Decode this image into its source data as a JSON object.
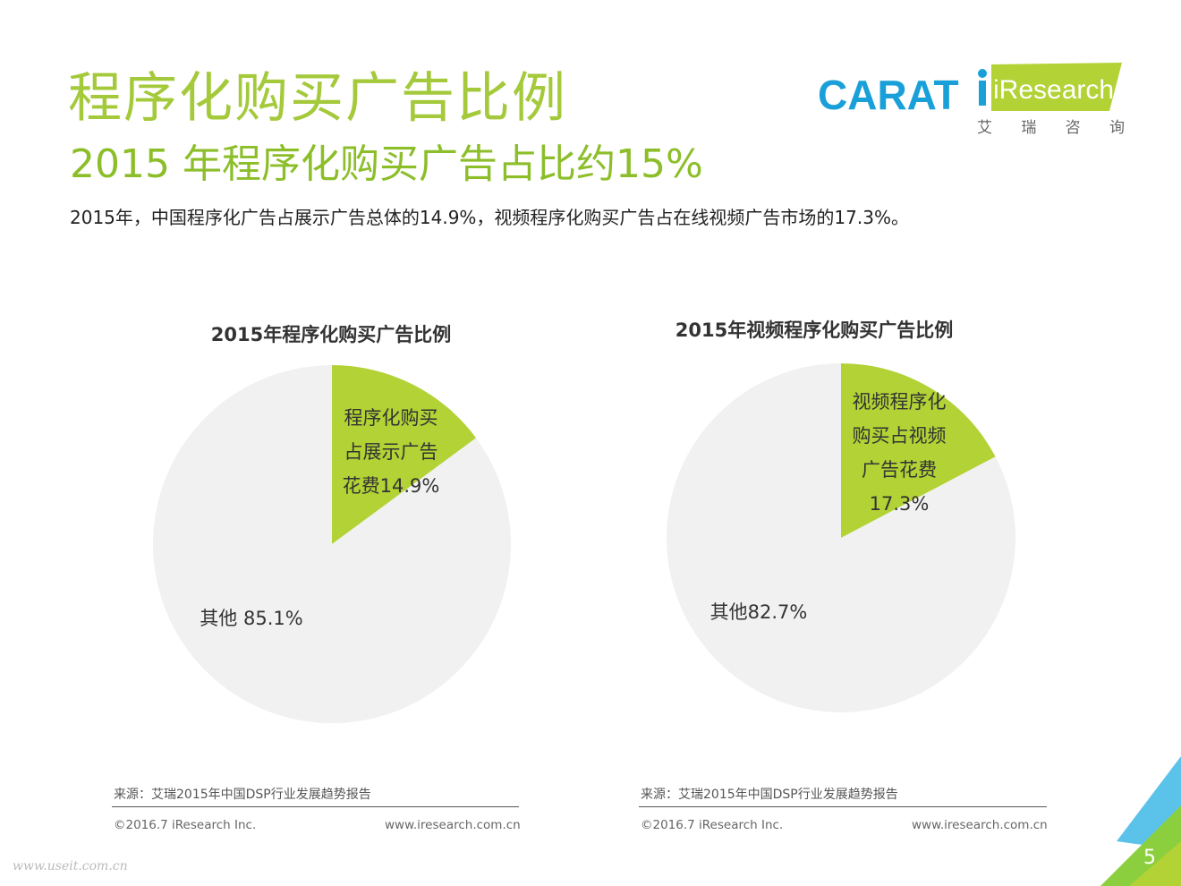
{
  "header": {
    "title": "程序化购买广告比例",
    "subtitle": "2015 年程序化购买广告占比约15%",
    "intro": "2015年，中国程序化广告占展示广告总体的14.9%，视频程序化购买广告占在线视频广告市场的17.3%。",
    "logo_carat": "CARAT",
    "logo_iresearch": "iResearch",
    "logo_iresearch_cn": [
      "艾",
      "瑞",
      "咨",
      "询"
    ]
  },
  "colors": {
    "accent": "#b2d235",
    "other": "#f1f1f1",
    "title": "#a4c93a",
    "carat": "#1aa0d8"
  },
  "chart_data": [
    {
      "type": "pie",
      "title": "2015年程序化购买广告比例",
      "slices": [
        {
          "label": [
            "程序化购买",
            "占展示广告",
            "花费14.9%"
          ],
          "value": 14.9,
          "color": "#b2d235"
        },
        {
          "label": [
            "其他 85.1%"
          ],
          "value": 85.1,
          "color": "#f1f1f1"
        }
      ]
    },
    {
      "type": "pie",
      "title": "2015年视频程序化购买广告比例",
      "slices": [
        {
          "label": [
            "视频程序化",
            "购买占视频",
            "广告花费",
            "17.3%"
          ],
          "value": 17.3,
          "color": "#b2d235"
        },
        {
          "label": [
            "其他82.7%"
          ],
          "value": 82.7,
          "color": "#f1f1f1"
        }
      ]
    }
  ],
  "footer": {
    "source": "来源：艾瑞2015年中国DSP行业发展趋势报告",
    "copyright": "©2016.7 iResearch Inc.",
    "website": "www.iresearch.com.cn",
    "watermark": "www.useit.com.cn",
    "page_number": "5"
  }
}
